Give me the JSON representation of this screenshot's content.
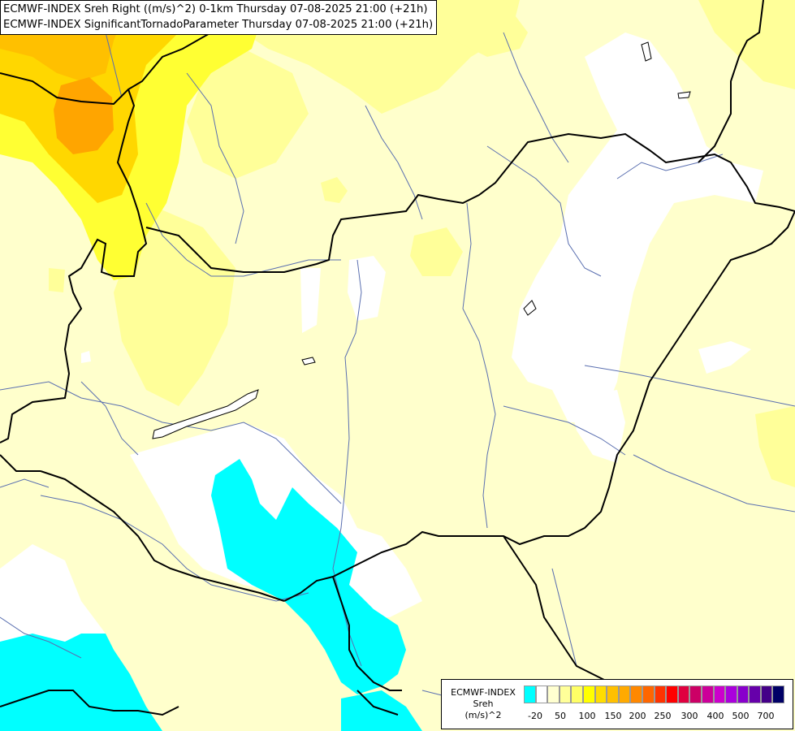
{
  "header": {
    "title_line1": "ECMWF-INDEX Sreh Right ((m/s)^2) 0-1km Thursday 07-08-2025 21:00 (+21h)",
    "title_line2": "ECMWF-INDEX SignificantTornadoParameter Thursday 07-08-2025 21:00 (+21h)"
  },
  "legend": {
    "title_line1": "ECMWF-INDEX",
    "title_line2": "Sreh",
    "title_line3": "(m/s)^2",
    "colors": [
      "#00ffff",
      "#ffffff",
      "#ffffd0",
      "#ffff99",
      "#ffff66",
      "#ffff00",
      "#ffdd00",
      "#ffc000",
      "#ffaa00",
      "#ff8800",
      "#ff6600",
      "#ff3300",
      "#ff0000",
      "#e00040",
      "#cc0066",
      "#cc0099",
      "#cc00cc",
      "#aa00dd",
      "#8800cc",
      "#6600aa",
      "#440088",
      "#000066"
    ],
    "ticks": [
      "-20",
      "50",
      "100",
      "150",
      "200",
      "250",
      "300",
      "400",
      "500",
      "700"
    ]
  },
  "colors": {
    "cyan": "#00ffff",
    "white": "#ffffff",
    "pale_yellow": "#ffffcc",
    "light_yellow": "#ffff99",
    "yellow": "#ffff00",
    "gold": "#ffd700",
    "orange": "#ffb000",
    "border": "#000000",
    "river": "#5a6fb0"
  },
  "map_features": [
    "country-border",
    "river",
    "lake"
  ]
}
